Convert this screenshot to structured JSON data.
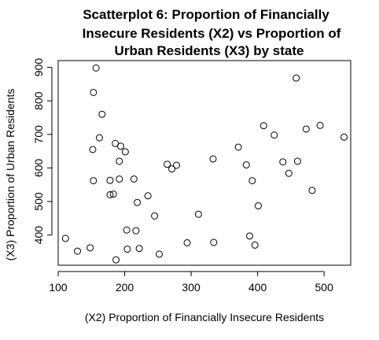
{
  "chart_data": {
    "type": "scatter",
    "title_lines": [
      "Scatterplot 6: Proportion of Financially",
      "Insecure Residents (X2) vs Proportion of",
      "Urban Residents (X3) by state"
    ],
    "xlabel": "(X2) Proportion of Financially Insecure Residents",
    "ylabel": "(X3) Proportion of Urban Residents",
    "xlim": [
      100,
      540
    ],
    "ylim": [
      310,
      920
    ],
    "x_ticks": [
      100,
      200,
      300,
      400,
      500
    ],
    "y_ticks": [
      400,
      500,
      600,
      700,
      800,
      900
    ],
    "x_tick_labels": [
      "100",
      "200",
      "300",
      "400",
      "500"
    ],
    "y_tick_labels": [
      "400",
      "500",
      "600",
      "700",
      "800",
      "900"
    ],
    "grid": false,
    "legend": "none",
    "points": [
      {
        "x": 111,
        "y": 390
      },
      {
        "x": 129,
        "y": 352
      },
      {
        "x": 148,
        "y": 362
      },
      {
        "x": 152,
        "y": 655
      },
      {
        "x": 153,
        "y": 562
      },
      {
        "x": 153,
        "y": 825
      },
      {
        "x": 157,
        "y": 898
      },
      {
        "x": 162,
        "y": 690
      },
      {
        "x": 166,
        "y": 760
      },
      {
        "x": 178,
        "y": 563
      },
      {
        "x": 178,
        "y": 520
      },
      {
        "x": 183,
        "y": 522
      },
      {
        "x": 186,
        "y": 673
      },
      {
        "x": 187,
        "y": 326
      },
      {
        "x": 192,
        "y": 567
      },
      {
        "x": 192,
        "y": 620
      },
      {
        "x": 194,
        "y": 665
      },
      {
        "x": 201,
        "y": 648
      },
      {
        "x": 203,
        "y": 415
      },
      {
        "x": 204,
        "y": 358
      },
      {
        "x": 214,
        "y": 567
      },
      {
        "x": 217,
        "y": 413
      },
      {
        "x": 219,
        "y": 497
      },
      {
        "x": 222,
        "y": 360
      },
      {
        "x": 235,
        "y": 517
      },
      {
        "x": 245,
        "y": 457
      },
      {
        "x": 252,
        "y": 343
      },
      {
        "x": 264,
        "y": 611
      },
      {
        "x": 271,
        "y": 597
      },
      {
        "x": 278,
        "y": 608
      },
      {
        "x": 294,
        "y": 377
      },
      {
        "x": 311,
        "y": 462
      },
      {
        "x": 333,
        "y": 627
      },
      {
        "x": 334,
        "y": 378
      },
      {
        "x": 371,
        "y": 662
      },
      {
        "x": 383,
        "y": 609
      },
      {
        "x": 388,
        "y": 397
      },
      {
        "x": 392,
        "y": 562
      },
      {
        "x": 396,
        "y": 370
      },
      {
        "x": 401,
        "y": 487
      },
      {
        "x": 409,
        "y": 726
      },
      {
        "x": 425,
        "y": 698
      },
      {
        "x": 438,
        "y": 618
      },
      {
        "x": 447,
        "y": 584
      },
      {
        "x": 458,
        "y": 868
      },
      {
        "x": 460,
        "y": 620
      },
      {
        "x": 473,
        "y": 716
      },
      {
        "x": 482,
        "y": 533
      },
      {
        "x": 494,
        "y": 727
      },
      {
        "x": 530,
        "y": 692
      }
    ]
  }
}
